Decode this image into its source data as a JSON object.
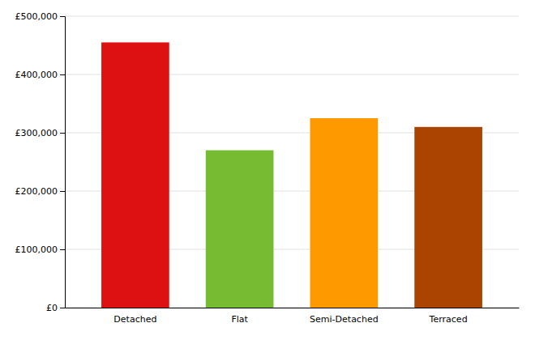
{
  "chart_data": {
    "type": "bar",
    "categories": [
      "Detached",
      "Flat",
      "Semi-Detached",
      "Terraced"
    ],
    "values": [
      455000,
      270000,
      325000,
      310000
    ],
    "colors": [
      "#dd1111",
      "#77bb33",
      "#ff9900",
      "#aa4400"
    ],
    "ylim": [
      0,
      500000
    ],
    "yticks": [
      {
        "value": 0,
        "label": "£0"
      },
      {
        "value": 100000,
        "label": "£100,000"
      },
      {
        "value": 200000,
        "label": "£200,000"
      },
      {
        "value": 300000,
        "label": "£300,000"
      },
      {
        "value": 400000,
        "label": "£400,000"
      },
      {
        "value": 500000,
        "label": "£500,000"
      }
    ],
    "grid": true
  }
}
